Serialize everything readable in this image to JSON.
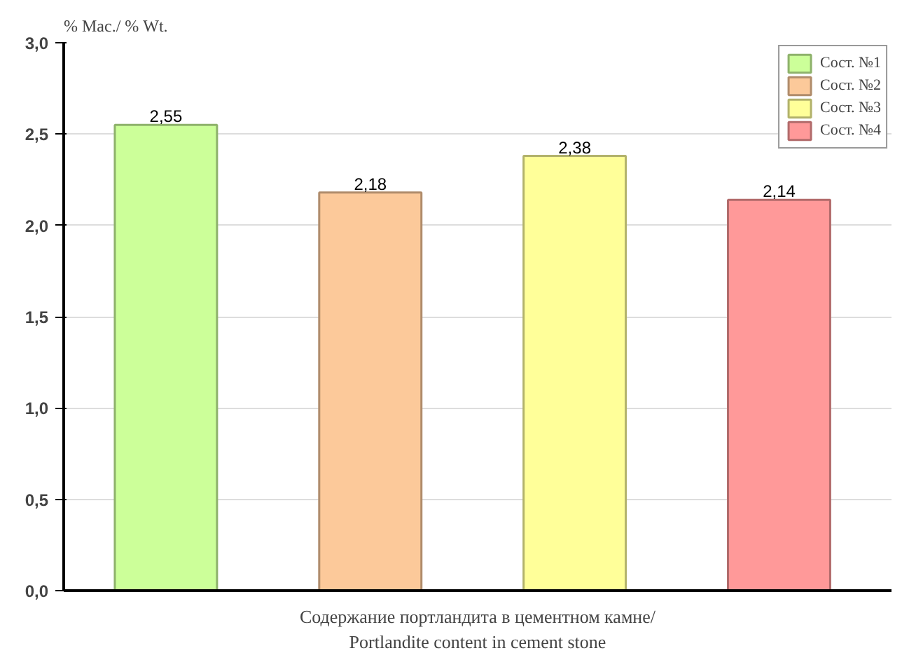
{
  "chart_data": {
    "type": "bar",
    "ylabel": "% Мас./ % Wt.",
    "xlabel": "Содержание портландита в цементном камне/\nPortlandite content in cement stone",
    "categories": [
      null,
      null,
      null,
      null
    ],
    "stacked": true,
    "series": [
      {
        "name": "Сост. №1",
        "color": "#ccff99",
        "values": [
          2.55,
          null,
          null,
          null
        ],
        "value_labels": [
          "2,55",
          null,
          null,
          null
        ]
      },
      {
        "name": "Сост. №2",
        "color": "#fcc99a",
        "values": [
          null,
          2.18,
          null,
          null
        ],
        "value_labels": [
          null,
          "2,18",
          null,
          null
        ]
      },
      {
        "name": "Сост. №3",
        "color": "#ffff99",
        "values": [
          null,
          null,
          2.38,
          null
        ],
        "value_labels": [
          null,
          null,
          "2,38",
          null
        ]
      },
      {
        "name": "Сост. №4",
        "color": "#ff9999",
        "values": [
          null,
          null,
          null,
          2.14
        ],
        "value_labels": [
          null,
          null,
          null,
          "2,14"
        ]
      }
    ],
    "ylim": [
      0,
      3
    ],
    "yticks": [
      {
        "value": 0,
        "label": "0,0"
      },
      {
        "value": 0.5,
        "label": "0,5"
      },
      {
        "value": 1,
        "label": "1,0"
      },
      {
        "value": 1.5,
        "label": "1,5"
      },
      {
        "value": 2,
        "label": "2,0"
      },
      {
        "value": 2.5,
        "label": "2,5"
      },
      {
        "value": 3,
        "label": "3,0"
      }
    ],
    "grid": "y",
    "legend": "top right"
  }
}
